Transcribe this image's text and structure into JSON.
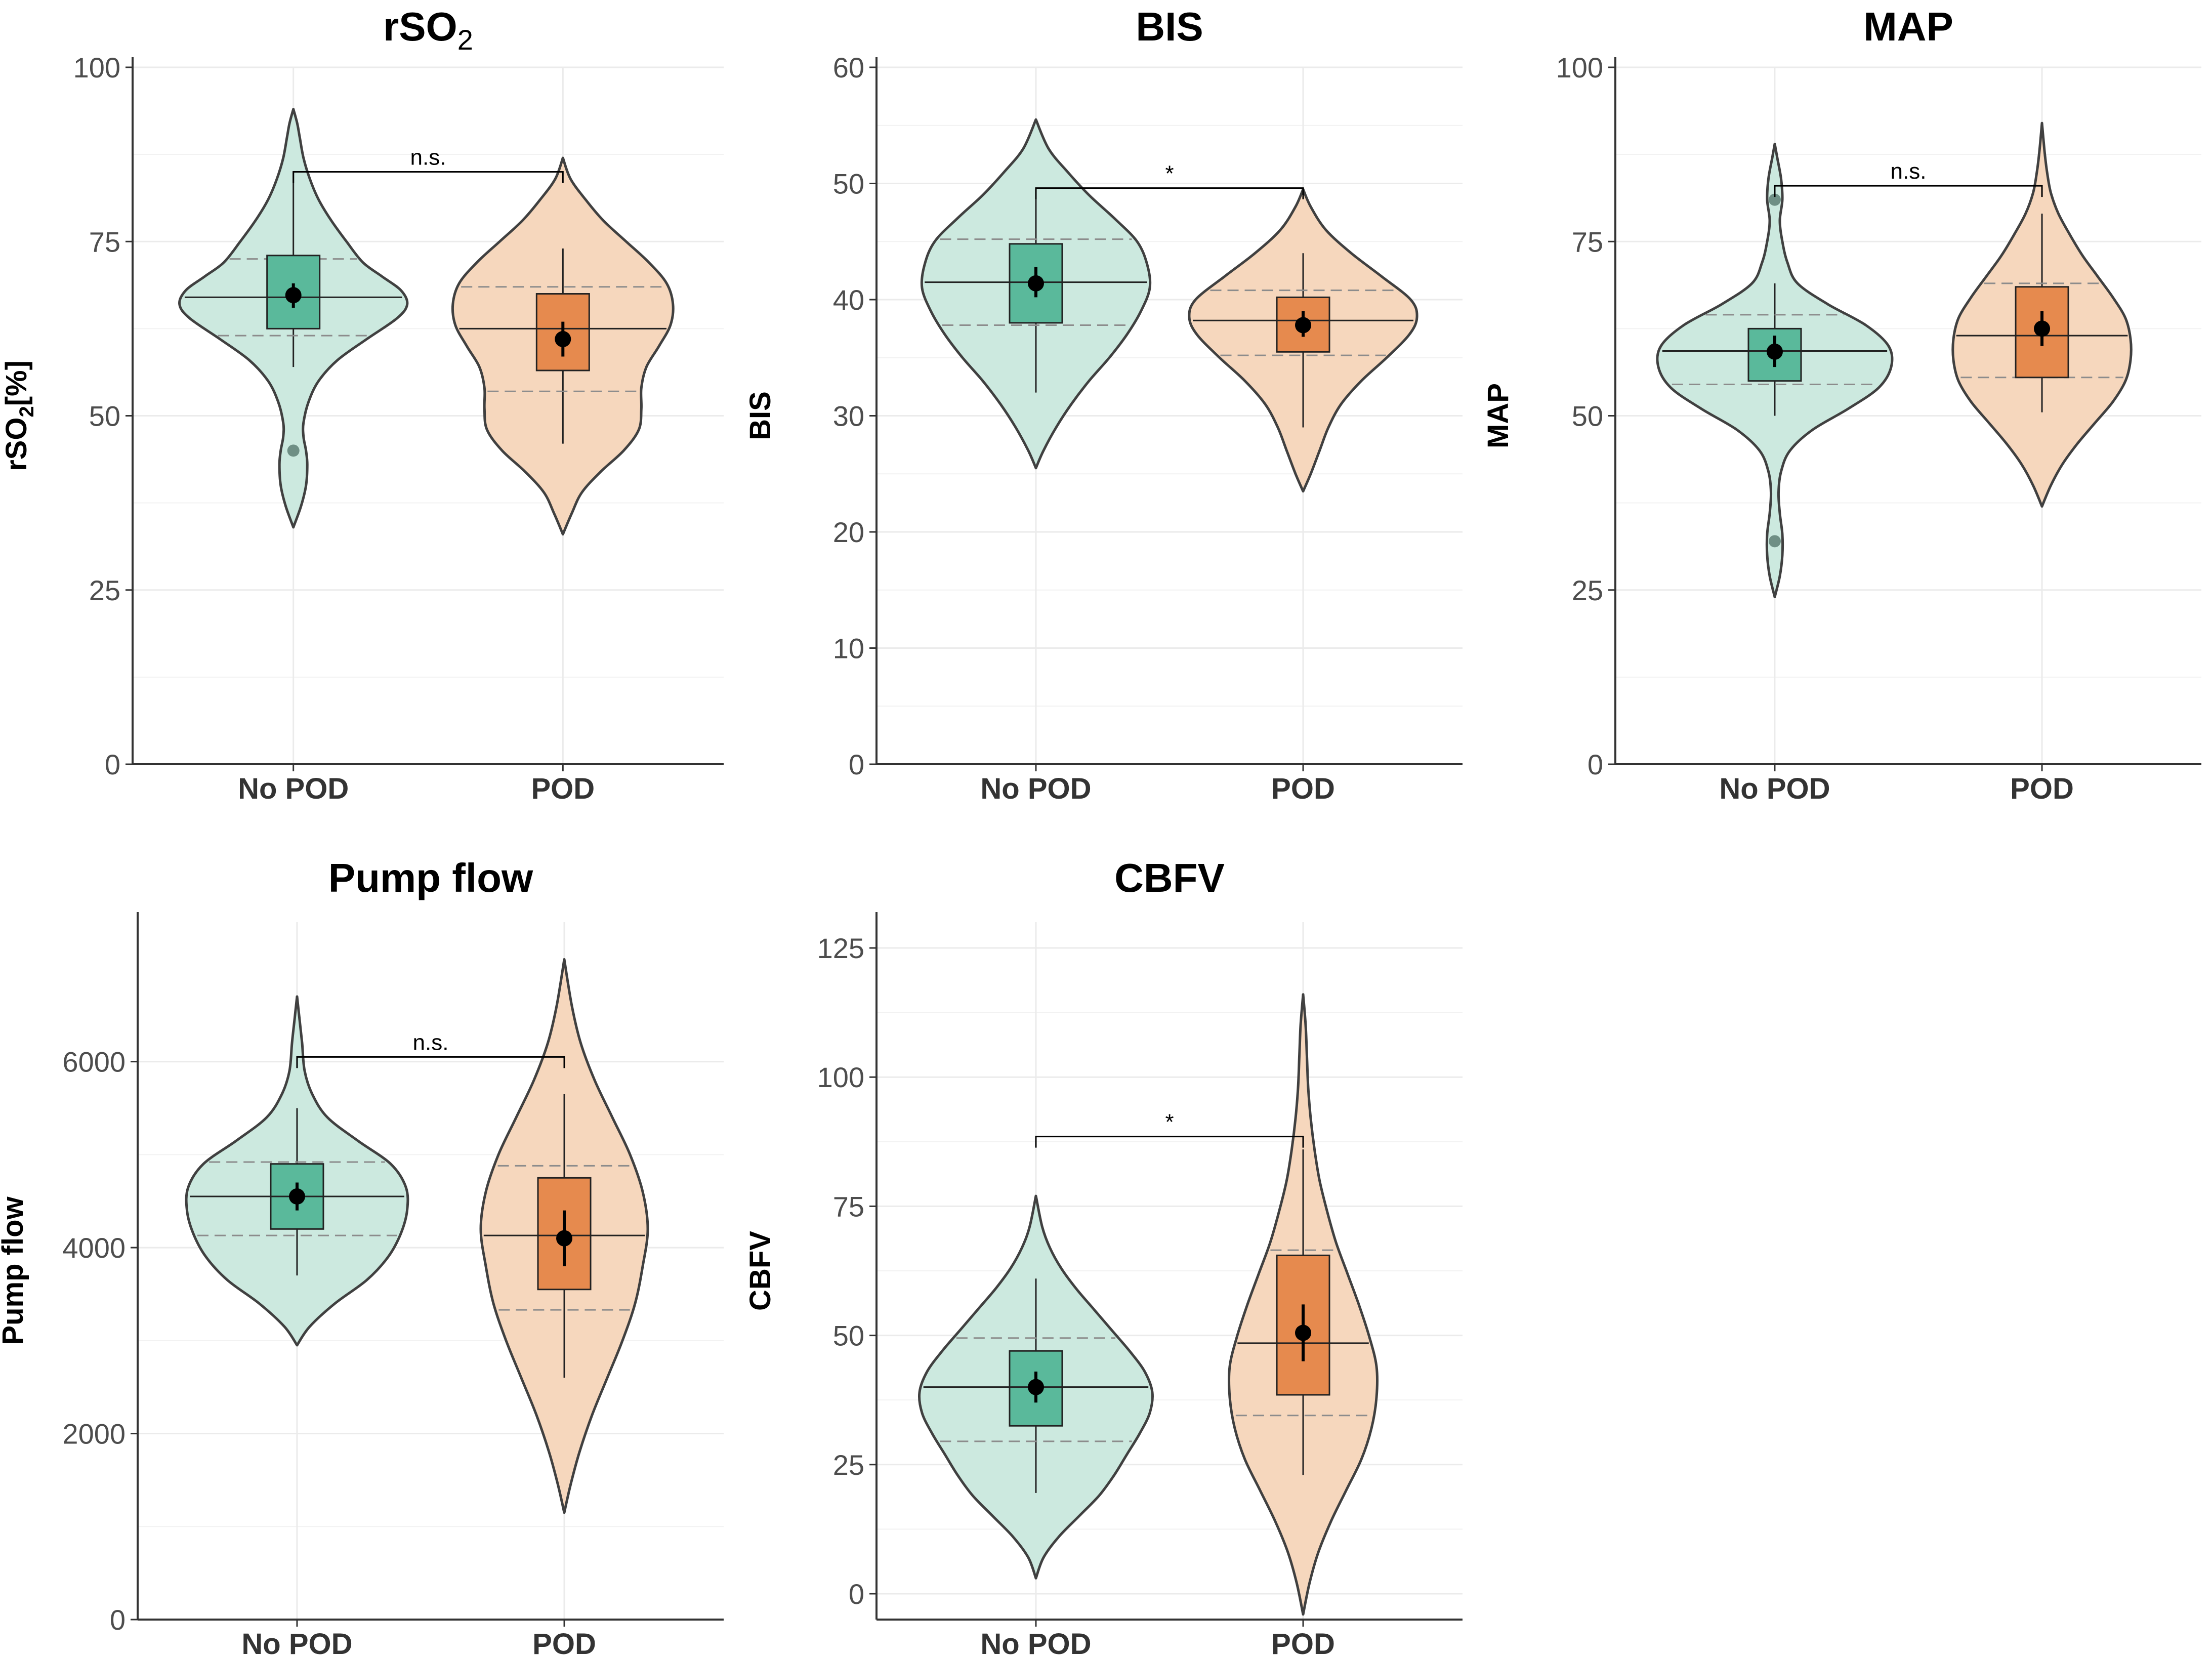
{
  "figure": {
    "groups": [
      "No POD",
      "POD"
    ],
    "colors": {
      "no_pod_fill": "#cce9df",
      "no_pod_box": "#5ab99b",
      "pod_fill": "#f6d7bd",
      "pod_box": "#e68a4e",
      "outline": "#404040",
      "grid": "#ebebeb"
    }
  },
  "chart_data": [
    {
      "id": "rso2",
      "type": "violin",
      "title": "rSO",
      "title_sub": "2",
      "ylabel": "rSO",
      "ylabel_sub": "2",
      "ylabel_suffix": "[%]",
      "ylim": [
        0,
        100
      ],
      "yticks": [
        0,
        25,
        50,
        75,
        100
      ],
      "categories": [
        "No POD",
        "POD"
      ],
      "series": [
        {
          "name": "No POD",
          "violin_min": 34,
          "violin_max": 94,
          "shape": [
            [
              34,
              0
            ],
            [
              37,
              0.06
            ],
            [
              40,
              0.1
            ],
            [
              43,
              0.11
            ],
            [
              45,
              0.1
            ],
            [
              47,
              0.08
            ],
            [
              49,
              0.08
            ],
            [
              52,
              0.12
            ],
            [
              55,
              0.2
            ],
            [
              58,
              0.35
            ],
            [
              61,
              0.58
            ],
            [
              64,
              0.82
            ],
            [
              66,
              0.9
            ],
            [
              68,
              0.85
            ],
            [
              70,
              0.7
            ],
            [
              72,
              0.55
            ],
            [
              75,
              0.42
            ],
            [
              78,
              0.3
            ],
            [
              81,
              0.2
            ],
            [
              84,
              0.13
            ],
            [
              87,
              0.08
            ],
            [
              90,
              0.05
            ],
            [
              92,
              0.03
            ],
            [
              94,
              0
            ]
          ],
          "q1": 62.5,
          "median": 67,
          "q3": 73,
          "dashed_q1": 61.5,
          "dashed_q3": 72.5,
          "whisker_low": 57,
          "whisker_high": 85,
          "mean": 67.3,
          "ci_low": 65.5,
          "ci_high": 69,
          "outliers": [
            45
          ]
        },
        {
          "name": "POD",
          "violin_min": 33,
          "violin_max": 87,
          "shape": [
            [
              33,
              0
            ],
            [
              36,
              0.07
            ],
            [
              39,
              0.15
            ],
            [
              42,
              0.3
            ],
            [
              45,
              0.48
            ],
            [
              48,
              0.6
            ],
            [
              51,
              0.62
            ],
            [
              54,
              0.62
            ],
            [
              57,
              0.66
            ],
            [
              60,
              0.76
            ],
            [
              63,
              0.85
            ],
            [
              66,
              0.87
            ],
            [
              69,
              0.82
            ],
            [
              72,
              0.68
            ],
            [
              75,
              0.5
            ],
            [
              78,
              0.32
            ],
            [
              81,
              0.18
            ],
            [
              84,
              0.06
            ],
            [
              87,
              0
            ]
          ],
          "q1": 56.5,
          "median": 62.5,
          "q3": 67.5,
          "dashed_q1": 53.5,
          "dashed_q3": 68.5,
          "whisker_low": 46,
          "whisker_high": 74,
          "mean": 61,
          "ci_low": 58.5,
          "ci_high": 63.5,
          "outliers": []
        }
      ],
      "significance": {
        "label": "n.s.",
        "y": 85
      }
    },
    {
      "id": "bis",
      "type": "violin",
      "title": "BIS",
      "ylabel": "BIS",
      "ylim": [
        0,
        60
      ],
      "yticks": [
        0,
        10,
        20,
        30,
        40,
        50,
        60
      ],
      "categories": [
        "No POD",
        "POD"
      ],
      "series": [
        {
          "name": "No POD",
          "violin_min": 25.5,
          "violin_max": 55.5,
          "shape": [
            [
              25.5,
              0
            ],
            [
              27,
              0.06
            ],
            [
              29,
              0.16
            ],
            [
              31,
              0.28
            ],
            [
              33,
              0.42
            ],
            [
              35,
              0.58
            ],
            [
              37,
              0.72
            ],
            [
              39,
              0.83
            ],
            [
              41,
              0.9
            ],
            [
              43,
              0.88
            ],
            [
              45,
              0.8
            ],
            [
              47,
              0.62
            ],
            [
              49,
              0.42
            ],
            [
              51,
              0.25
            ],
            [
              53,
              0.1
            ],
            [
              55.5,
              0
            ]
          ],
          "q1": 38,
          "median": 41.5,
          "q3": 44.8,
          "dashed_q1": 37.8,
          "dashed_q3": 45.2,
          "whisker_low": 32,
          "whisker_high": 49.5,
          "mean": 41.4,
          "ci_low": 40.2,
          "ci_high": 42.8,
          "outliers": []
        },
        {
          "name": "POD",
          "violin_min": 23.5,
          "violin_max": 49.5,
          "shape": [
            [
              23.5,
              0
            ],
            [
              25,
              0.06
            ],
            [
              27,
              0.13
            ],
            [
              29,
              0.2
            ],
            [
              31,
              0.3
            ],
            [
              33,
              0.46
            ],
            [
              35,
              0.66
            ],
            [
              37,
              0.84
            ],
            [
              38.5,
              0.9
            ],
            [
              40,
              0.85
            ],
            [
              42,
              0.62
            ],
            [
              44,
              0.38
            ],
            [
              46,
              0.18
            ],
            [
              48,
              0.06
            ],
            [
              49.5,
              0
            ]
          ],
          "q1": 35.5,
          "median": 38.2,
          "q3": 40.2,
          "dashed_q1": 35.2,
          "dashed_q3": 40.8,
          "whisker_low": 29,
          "whisker_high": 44,
          "mean": 37.8,
          "ci_low": 36.8,
          "ci_high": 39,
          "outliers": []
        }
      ],
      "significance": {
        "label": "*",
        "y": 49.6
      }
    },
    {
      "id": "map",
      "type": "violin",
      "title": "MAP",
      "ylabel": "MAP",
      "ylim": [
        0,
        100
      ],
      "yticks": [
        0,
        25,
        50,
        75,
        100
      ],
      "categories": [
        "No POD",
        "POD"
      ],
      "series": [
        {
          "name": "No POD",
          "violin_min": 24,
          "violin_max": 89,
          "shape": [
            [
              24,
              0
            ],
            [
              27,
              0.04
            ],
            [
              30,
              0.06
            ],
            [
              33,
              0.06
            ],
            [
              36,
              0.04
            ],
            [
              39,
              0.03
            ],
            [
              42,
              0.05
            ],
            [
              45,
              0.12
            ],
            [
              48,
              0.3
            ],
            [
              51,
              0.58
            ],
            [
              54,
              0.82
            ],
            [
              57,
              0.92
            ],
            [
              60,
              0.9
            ],
            [
              63,
              0.72
            ],
            [
              66,
              0.42
            ],
            [
              69,
              0.18
            ],
            [
              72,
              0.1
            ],
            [
              75,
              0.06
            ],
            [
              78,
              0.04
            ],
            [
              81,
              0.06
            ],
            [
              84,
              0.05
            ],
            [
              87,
              0.02
            ],
            [
              89,
              0
            ]
          ],
          "q1": 55,
          "median": 59.3,
          "q3": 62.5,
          "dashed_q1": 54.5,
          "dashed_q3": 64.5,
          "whisker_low": 50,
          "whisker_high": 69,
          "mean": 59.2,
          "ci_low": 57,
          "ci_high": 61.5,
          "outliers": [
            81,
            32
          ]
        },
        {
          "name": "POD",
          "violin_min": 37,
          "violin_max": 92,
          "shape": [
            [
              37,
              0
            ],
            [
              40,
              0.07
            ],
            [
              43,
              0.16
            ],
            [
              46,
              0.28
            ],
            [
              49,
              0.42
            ],
            [
              52,
              0.56
            ],
            [
              55,
              0.66
            ],
            [
              58,
              0.7
            ],
            [
              61,
              0.7
            ],
            [
              64,
              0.66
            ],
            [
              67,
              0.56
            ],
            [
              70,
              0.44
            ],
            [
              73,
              0.32
            ],
            [
              76,
              0.22
            ],
            [
              79,
              0.13
            ],
            [
              82,
              0.07
            ],
            [
              85,
              0.04
            ],
            [
              88,
              0.02
            ],
            [
              92,
              0
            ]
          ],
          "q1": 55.5,
          "median": 61.5,
          "q3": 68.5,
          "dashed_q1": 55.5,
          "dashed_q3": 69,
          "whisker_low": 50.5,
          "whisker_high": 79,
          "mean": 62.5,
          "ci_low": 60,
          "ci_high": 65,
          "outliers": []
        }
      ],
      "significance": {
        "label": "n.s.",
        "y": 83
      }
    },
    {
      "id": "pump",
      "type": "violin",
      "title": "Pump flow",
      "ylabel": "Pump flow",
      "ylim": [
        0,
        7500
      ],
      "yticks": [
        0,
        2000,
        4000,
        6000
      ],
      "categories": [
        "No POD",
        "POD"
      ],
      "series": [
        {
          "name": "No POD",
          "violin_min": 2950,
          "violin_max": 6700,
          "shape": [
            [
              2950,
              0
            ],
            [
              3150,
              0.1
            ],
            [
              3400,
              0.3
            ],
            [
              3650,
              0.55
            ],
            [
              3900,
              0.72
            ],
            [
              4150,
              0.82
            ],
            [
              4400,
              0.87
            ],
            [
              4650,
              0.86
            ],
            [
              4900,
              0.74
            ],
            [
              5150,
              0.48
            ],
            [
              5400,
              0.24
            ],
            [
              5650,
              0.12
            ],
            [
              5900,
              0.06
            ],
            [
              6200,
              0.04
            ],
            [
              6450,
              0.02
            ],
            [
              6700,
              0
            ]
          ],
          "q1": 4200,
          "median": 4550,
          "q3": 4900,
          "dashed_q1": 4130,
          "dashed_q3": 4920,
          "whisker_low": 3700,
          "whisker_high": 5500,
          "mean": 4550,
          "ci_low": 4400,
          "ci_high": 4700,
          "outliers": []
        },
        {
          "name": "POD",
          "violin_min": 1150,
          "violin_max": 7100,
          "shape": [
            [
              1150,
              0
            ],
            [
              1450,
              0.05
            ],
            [
              1800,
              0.12
            ],
            [
              2200,
              0.22
            ],
            [
              2600,
              0.34
            ],
            [
              3000,
              0.46
            ],
            [
              3400,
              0.56
            ],
            [
              3800,
              0.62
            ],
            [
              4200,
              0.66
            ],
            [
              4600,
              0.62
            ],
            [
              5000,
              0.52
            ],
            [
              5400,
              0.38
            ],
            [
              5800,
              0.24
            ],
            [
              6200,
              0.13
            ],
            [
              6600,
              0.06
            ],
            [
              7100,
              0
            ]
          ],
          "q1": 3550,
          "median": 4130,
          "q3": 4750,
          "dashed_q1": 3330,
          "dashed_q3": 4880,
          "whisker_low": 2600,
          "whisker_high": 5650,
          "mean": 4100,
          "ci_low": 3800,
          "ci_high": 4400,
          "outliers": []
        }
      ],
      "significance": {
        "label": "n.s.",
        "y": 6050
      }
    },
    {
      "id": "cbfv",
      "type": "violin",
      "title": "CBFV",
      "ylabel": "CBFV",
      "ylim": [
        -5,
        130
      ],
      "yticks": [
        0,
        25,
        50,
        75,
        100,
        125
      ],
      "categories": [
        "No POD",
        "POD"
      ],
      "series": [
        {
          "name": "No POD",
          "violin_min": 3,
          "violin_max": 77,
          "shape": [
            [
              3,
              0
            ],
            [
              7,
              0.06
            ],
            [
              11,
              0.18
            ],
            [
              15,
              0.34
            ],
            [
              19,
              0.5
            ],
            [
              23,
              0.62
            ],
            [
              27,
              0.72
            ],
            [
              31,
              0.82
            ],
            [
              35,
              0.9
            ],
            [
              39,
              0.92
            ],
            [
              43,
              0.86
            ],
            [
              47,
              0.74
            ],
            [
              51,
              0.6
            ],
            [
              55,
              0.46
            ],
            [
              59,
              0.32
            ],
            [
              63,
              0.2
            ],
            [
              67,
              0.11
            ],
            [
              71,
              0.05
            ],
            [
              77,
              0
            ]
          ],
          "q1": 32.5,
          "median": 40,
          "q3": 47,
          "dashed_q1": 29.5,
          "dashed_q3": 49.5,
          "whisker_low": 19.5,
          "whisker_high": 61,
          "mean": 40,
          "ci_low": 37,
          "ci_high": 43,
          "outliers": []
        },
        {
          "name": "POD",
          "violin_min": -4,
          "violin_max": 116,
          "shape": [
            [
              -4,
              0
            ],
            [
              2,
              0.05
            ],
            [
              8,
              0.12
            ],
            [
              14,
              0.22
            ],
            [
              20,
              0.34
            ],
            [
              26,
              0.46
            ],
            [
              32,
              0.54
            ],
            [
              38,
              0.58
            ],
            [
              44,
              0.58
            ],
            [
              50,
              0.52
            ],
            [
              56,
              0.44
            ],
            [
              62,
              0.35
            ],
            [
              68,
              0.26
            ],
            [
              74,
              0.19
            ],
            [
              80,
              0.13
            ],
            [
              86,
              0.09
            ],
            [
              92,
              0.06
            ],
            [
              98,
              0.04
            ],
            [
              104,
              0.03
            ],
            [
              110,
              0.02
            ],
            [
              116,
              0
            ]
          ],
          "q1": 38.5,
          "median": 48.5,
          "q3": 65.5,
          "dashed_q1": 34.5,
          "dashed_q3": 66.5,
          "whisker_low": 23,
          "whisker_high": 86,
          "mean": 50.5,
          "ci_low": 45,
          "ci_high": 56,
          "outliers": []
        }
      ],
      "significance": {
        "label": "*",
        "y": 88.5
      }
    }
  ]
}
